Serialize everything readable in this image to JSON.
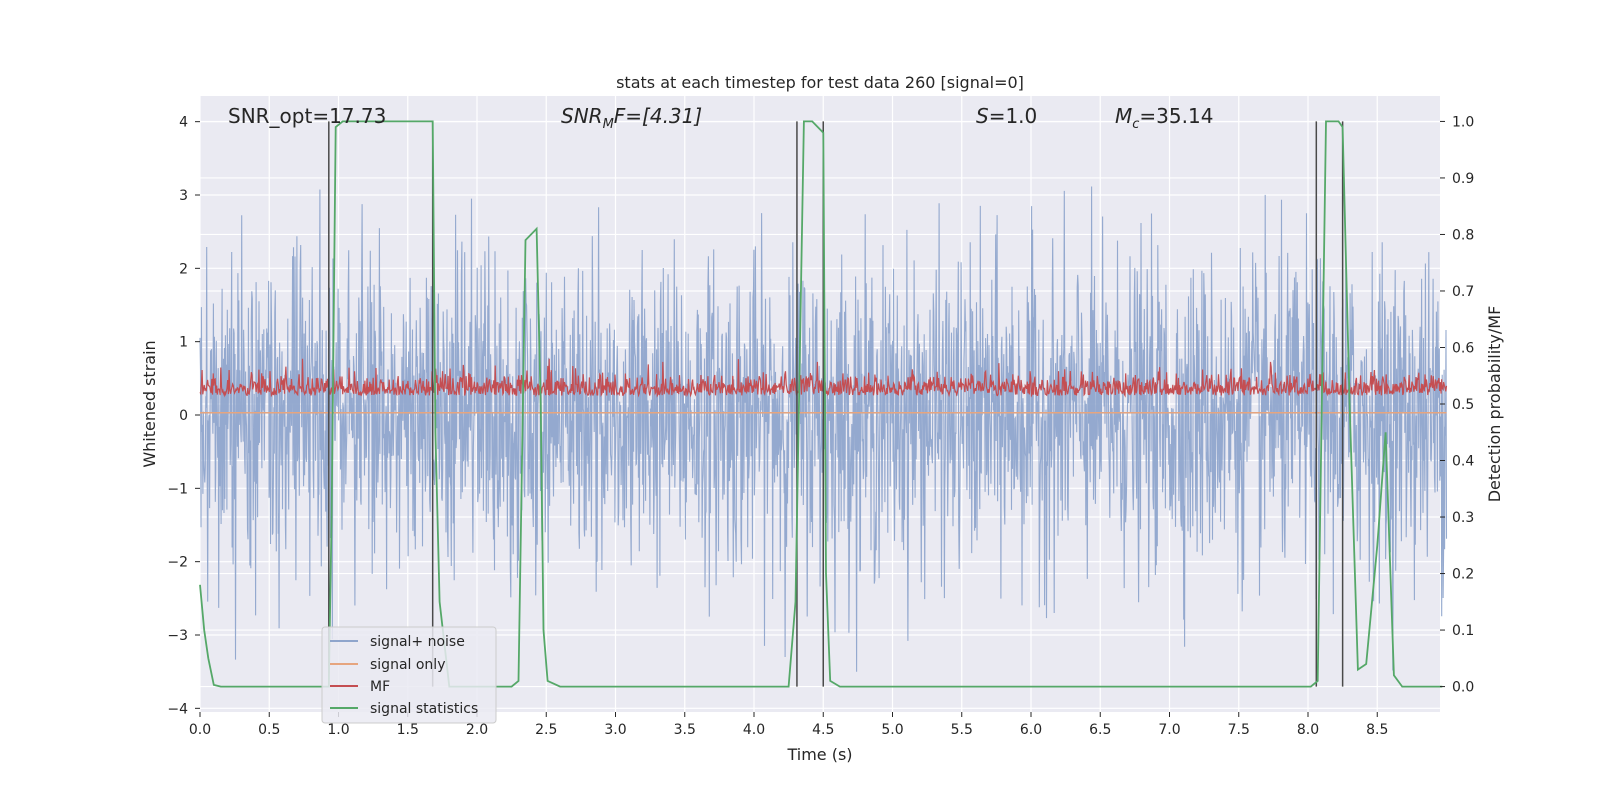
{
  "chart_data": {
    "type": "line",
    "title": "stats at each timestep for test data 260 [signal=0]",
    "xlabel": "Time (s)",
    "ylabel_left": "Whitened strain",
    "ylabel_right": "Detection probability/MF",
    "xlim": [
      0.0,
      9.0
    ],
    "ylim_left": [
      -4.05,
      4.35
    ],
    "ylim_right": [
      -0.045,
      1.045
    ],
    "x_ticks": [
      "0.0",
      "0.5",
      "1.0",
      "1.5",
      "2.0",
      "2.5",
      "3.0",
      "3.5",
      "4.0",
      "4.5",
      "5.0",
      "5.5",
      "6.0",
      "6.5",
      "7.0",
      "7.5",
      "8.0",
      "8.5"
    ],
    "y_ticks_left": [
      "4",
      "3",
      "2",
      "1",
      "0",
      "−1",
      "−2",
      "−3",
      "−4"
    ],
    "y_ticks_right": [
      "1.0",
      "0.9",
      "0.8",
      "0.7",
      "0.6",
      "0.5",
      "0.4",
      "0.3",
      "0.2",
      "0.1",
      "0.0"
    ],
    "grid": true,
    "legend_position": "lower-left",
    "annotations": {
      "snr_opt": "SNR_opt=17.73",
      "snr_mf_prefix": "SNR",
      "snr_mf_sub": "M",
      "snr_mf_rest": "F=[4.31]",
      "s_var": "S",
      "s_rest": "=1.0",
      "mc_var": "M",
      "mc_sub": "c",
      "mc_rest": "=35.14"
    },
    "legend": [
      "signal+ noise",
      "signal only",
      "MF",
      "signal statistics"
    ],
    "colors": {
      "signal_noise": "#8fa5cc",
      "signal_only": "#e6a57f",
      "mf": "#c44e52",
      "signal_statistics": "#55a868",
      "vlines": "#4a4a4a",
      "background": "#eaeaf2",
      "grid": "#ffffff"
    },
    "vlines": [
      0.93,
      1.68,
      4.31,
      4.5,
      8.06,
      8.25
    ],
    "series": [
      {
        "name": "signal statistics",
        "axis": "right",
        "x": [
          0.0,
          0.03,
          0.06,
          0.1,
          0.15,
          0.93,
          0.95,
          0.98,
          1.03,
          1.68,
          1.7,
          1.73,
          1.8,
          2.25,
          2.3,
          2.35,
          2.43,
          2.46,
          2.48,
          2.51,
          2.6,
          4.25,
          4.3,
          4.36,
          4.42,
          4.5,
          4.52,
          4.55,
          4.62,
          7.3,
          8.02,
          8.07,
          8.13,
          8.22,
          8.25,
          8.3,
          8.36,
          8.42,
          8.5,
          8.56,
          8.62,
          8.68,
          8.75,
          8.97
        ],
        "y": [
          0.18,
          0.1,
          0.05,
          0.003,
          0.0,
          0.0,
          0.3,
          0.99,
          1.0,
          1.0,
          0.45,
          0.15,
          0.0,
          0.0,
          0.01,
          0.79,
          0.81,
          0.5,
          0.1,
          0.01,
          0.0,
          0.0,
          0.15,
          1.0,
          1.0,
          0.98,
          0.2,
          0.01,
          0.0,
          0.0,
          0.0,
          0.01,
          1.0,
          1.0,
          0.99,
          0.5,
          0.03,
          0.04,
          0.25,
          0.45,
          0.02,
          0.0,
          0.0,
          0.0
        ]
      },
      {
        "name": "signal only",
        "axis": "left",
        "x": [
          0.0,
          9.0
        ],
        "y": [
          0.03,
          0.03
        ]
      }
    ],
    "noise_series": {
      "name": "signal+ noise",
      "axis": "left",
      "x_range": [
        0.0,
        9.0
      ],
      "std": 1.0,
      "approx_range": [
        -3.5,
        3.5
      ]
    },
    "mf_series": {
      "name": "MF",
      "axis": "right",
      "x_range": [
        0.0,
        9.0
      ],
      "approx_range": [
        0.49,
        0.58
      ]
    }
  }
}
